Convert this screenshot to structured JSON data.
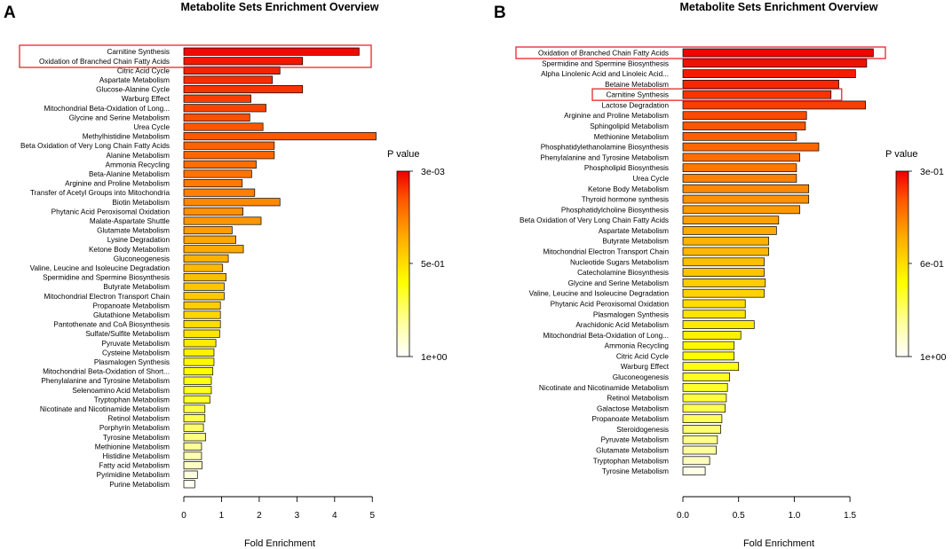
{
  "colors": {
    "scale_high": "#ee0000",
    "scale_mid": "#ff8800",
    "scale_low": "#ffff00",
    "scale_min": "#ffffff",
    "highlight_box": "#e8262c"
  },
  "chart_data": [
    {
      "type": "bar",
      "orientation": "horizontal",
      "panel_letter": "A",
      "title": "Metabolite Sets Enrichment Overview",
      "xlabel": "Fold Enrichment",
      "xlim": [
        0,
        5.1
      ],
      "xticks": [
        0,
        1,
        2,
        3,
        4,
        5
      ],
      "xtick_labels": [
        "0",
        "1",
        "2",
        "3",
        "4",
        "5"
      ],
      "legend": {
        "title": "P value",
        "tick_labels": [
          "3e-03",
          "5e-01",
          "1e+00"
        ]
      },
      "highlighted": [
        "Carnitine Synthesis",
        "Oxidation of Branched Chain Fatty Acids"
      ],
      "bars": [
        {
          "label": "Carnitine Synthesis",
          "value": 4.65,
          "level": 0.98
        },
        {
          "label": "Oxidation of Branched Chain Fatty Acids",
          "value": 3.15,
          "level": 0.96
        },
        {
          "label": "Citric Acid Cycle",
          "value": 2.55,
          "level": 0.94
        },
        {
          "label": "Aspartate Metabolism",
          "value": 2.35,
          "level": 0.92
        },
        {
          "label": "Glucose-Alanine Cycle",
          "value": 3.15,
          "level": 0.91
        },
        {
          "label": "Warburg Effect",
          "value": 1.78,
          "level": 0.89
        },
        {
          "label": "Mitochondrial Beta-Oxidation of Long...",
          "value": 2.18,
          "level": 0.88
        },
        {
          "label": "Glycine and Serine Metabolism",
          "value": 1.75,
          "level": 0.86
        },
        {
          "label": "Urea Cycle",
          "value": 2.1,
          "level": 0.85
        },
        {
          "label": "Methylhistidine Metabolism",
          "value": 5.1,
          "level": 0.84
        },
        {
          "label": "Beta Oxidation of Very Long Chain Fatty Acids",
          "value": 2.4,
          "level": 0.82
        },
        {
          "label": "Alanine Metabolism",
          "value": 2.4,
          "level": 0.81
        },
        {
          "label": "Ammonia Recycling",
          "value": 1.92,
          "level": 0.79
        },
        {
          "label": "Beta-Alanine Metabolism",
          "value": 1.8,
          "level": 0.78
        },
        {
          "label": "Arginine and Proline Metabolism",
          "value": 1.55,
          "level": 0.76
        },
        {
          "label": "Transfer of Acetyl Groups into Mitochondria",
          "value": 1.88,
          "level": 0.75
        },
        {
          "label": "Biotin Metabolism",
          "value": 2.55,
          "level": 0.73
        },
        {
          "label": "Phytanic Acid Peroxisomal Oxidation",
          "value": 1.57,
          "level": 0.71
        },
        {
          "label": "Malate-Aspartate Shuttle",
          "value": 2.05,
          "level": 0.7
        },
        {
          "label": "Glutamate Metabolism",
          "value": 1.28,
          "level": 0.68
        },
        {
          "label": "Lysine Degradation",
          "value": 1.38,
          "level": 0.66
        },
        {
          "label": "Ketone Body Metabolism",
          "value": 1.58,
          "level": 0.65
        },
        {
          "label": "Gluconeogenesis",
          "value": 1.18,
          "level": 0.63
        },
        {
          "label": "Valine, Leucine and Isoleucine Degradation",
          "value": 1.03,
          "level": 0.61
        },
        {
          "label": "Spermidine and Spermine Biosynthesis",
          "value": 1.12,
          "level": 0.59
        },
        {
          "label": "Butyrate Metabolism",
          "value": 1.07,
          "level": 0.57
        },
        {
          "label": "Mitochondrial Electron Transport Chain",
          "value": 1.07,
          "level": 0.56
        },
        {
          "label": "Propanoate Metabolism",
          "value": 0.97,
          "level": 0.54
        },
        {
          "label": "Glutathione Metabolism",
          "value": 0.97,
          "level": 0.52
        },
        {
          "label": "Pantothenate and CoA Biosynthesis",
          "value": 0.97,
          "level": 0.5
        },
        {
          "label": "Sulfate/Sulfite Metabolism",
          "value": 0.95,
          "level": 0.48
        },
        {
          "label": "Pyruvate Metabolism",
          "value": 0.85,
          "level": 0.46
        },
        {
          "label": "Cysteine Metabolism",
          "value": 0.8,
          "level": 0.44
        },
        {
          "label": "Plasmalogen Synthesis",
          "value": 0.8,
          "level": 0.42
        },
        {
          "label": "Mitochondrial Beta-Oxidation of Short...",
          "value": 0.77,
          "level": 0.4
        },
        {
          "label": "Phenylalanine and Tyrosine Metabolism",
          "value": 0.73,
          "level": 0.38
        },
        {
          "label": "Selenoamino Acid Metabolism",
          "value": 0.73,
          "level": 0.36
        },
        {
          "label": "Tryptophan Metabolism",
          "value": 0.69,
          "level": 0.34
        },
        {
          "label": "Nicotinate and Nicotinamide Metabolism",
          "value": 0.56,
          "level": 0.31
        },
        {
          "label": "Retinol Metabolism",
          "value": 0.56,
          "level": 0.29
        },
        {
          "label": "Porphyrin Metabolism",
          "value": 0.52,
          "level": 0.26
        },
        {
          "label": "Tyrosine Metabolism",
          "value": 0.58,
          "level": 0.23
        },
        {
          "label": "Methionine Metabolism",
          "value": 0.47,
          "level": 0.19
        },
        {
          "label": "Histidine Metabolism",
          "value": 0.47,
          "level": 0.15
        },
        {
          "label": "Fatty acid Metabolism",
          "value": 0.48,
          "level": 0.11
        },
        {
          "label": "Pyrimidine Metabolism",
          "value": 0.36,
          "level": 0.06
        },
        {
          "label": "Purine Metabolism",
          "value": 0.29,
          "level": 0.02
        }
      ]
    },
    {
      "type": "bar",
      "orientation": "horizontal",
      "panel_letter": "B",
      "title": "Metabolite Sets Enrichment Overview",
      "xlabel": "Fold Enrichment",
      "xlim": [
        0,
        1.7
      ],
      "xticks": [
        0,
        0.5,
        1,
        1.5
      ],
      "xtick_labels": [
        "0.0",
        "0.5",
        "1.0",
        "1.5"
      ],
      "legend": {
        "title": "P value",
        "tick_labels": [
          "3e-01",
          "6e-01",
          "1e+00"
        ]
      },
      "highlighted": [
        "Oxidation of Branched Chain Fatty Acids",
        "Carnitine Synthesis"
      ],
      "bars": [
        {
          "label": "Oxidation of Branched Chain Fatty Acids",
          "value": 1.71,
          "level": 0.99
        },
        {
          "label": "Spermidine and Spermine Biosynthesis",
          "value": 1.65,
          "level": 0.97
        },
        {
          "label": "Alpha Linolenic Acid and Linoleic Acid...",
          "value": 1.55,
          "level": 0.95
        },
        {
          "label": "Betaine Metabolism",
          "value": 1.4,
          "level": 0.93
        },
        {
          "label": "Carnitine Synthesis",
          "value": 1.33,
          "level": 0.91
        },
        {
          "label": "Lactose Degradation",
          "value": 1.64,
          "level": 0.89
        },
        {
          "label": "Arginine and Proline Metabolism",
          "value": 1.11,
          "level": 0.87
        },
        {
          "label": "Sphingolipid Metabolism",
          "value": 1.1,
          "level": 0.85
        },
        {
          "label": "Methionine Metabolism",
          "value": 1.02,
          "level": 0.83
        },
        {
          "label": "Phosphatidylethanolamine Biosynthesis",
          "value": 1.22,
          "level": 0.81
        },
        {
          "label": "Phenylalanine and Tyrosine Metabolism",
          "value": 1.05,
          "level": 0.79
        },
        {
          "label": "Phospholipid Biosynthesis",
          "value": 1.02,
          "level": 0.77
        },
        {
          "label": "Urea Cycle",
          "value": 1.02,
          "level": 0.75
        },
        {
          "label": "Ketone Body Metabolism",
          "value": 1.13,
          "level": 0.73
        },
        {
          "label": "Thyroid hormone synthesis",
          "value": 1.13,
          "level": 0.71
        },
        {
          "label": "Phosphatidylcholine Biosynthesis",
          "value": 1.05,
          "level": 0.69
        },
        {
          "label": "Beta Oxidation of Very Long Chain Fatty Acids",
          "value": 0.86,
          "level": 0.67
        },
        {
          "label": "Aspartate Metabolism",
          "value": 0.84,
          "level": 0.65
        },
        {
          "label": "Butyrate Metabolism",
          "value": 0.77,
          "level": 0.63
        },
        {
          "label": "Mitochondrial Electron Transport Chain",
          "value": 0.77,
          "level": 0.61
        },
        {
          "label": "Nucleotide Sugars Metabolism",
          "value": 0.73,
          "level": 0.59
        },
        {
          "label": "Catecholamine Biosynthesis",
          "value": 0.73,
          "level": 0.57
        },
        {
          "label": "Glycine and Serine Metabolism",
          "value": 0.74,
          "level": 0.55
        },
        {
          "label": "Valine, Leucine and Isoleucine Degradation",
          "value": 0.73,
          "level": 0.53
        },
        {
          "label": "Phytanic Acid Peroxisomal Oxidation",
          "value": 0.56,
          "level": 0.5
        },
        {
          "label": "Plasmalogen Synthesis",
          "value": 0.56,
          "level": 0.48
        },
        {
          "label": "Arachidonic Acid Metabolism",
          "value": 0.64,
          "level": 0.46
        },
        {
          "label": "Mitochondrial Beta-Oxidation of Long...",
          "value": 0.52,
          "level": 0.44
        },
        {
          "label": "Ammonia Recycling",
          "value": 0.46,
          "level": 0.42
        },
        {
          "label": "Citric Acid Cycle",
          "value": 0.46,
          "level": 0.4
        },
        {
          "label": "Warburg Effect",
          "value": 0.5,
          "level": 0.38
        },
        {
          "label": "Gluconeogenesis",
          "value": 0.42,
          "level": 0.36
        },
        {
          "label": "Nicotinate and Nicotinamide Metabolism",
          "value": 0.4,
          "level": 0.34
        },
        {
          "label": "Retinol Metabolism",
          "value": 0.39,
          "level": 0.32
        },
        {
          "label": "Galactose Metabolism",
          "value": 0.38,
          "level": 0.3
        },
        {
          "label": "Propanoate Metabolism",
          "value": 0.35,
          "level": 0.27
        },
        {
          "label": "Steroidogenesis",
          "value": 0.34,
          "level": 0.24
        },
        {
          "label": "Pyruvate Metabolism",
          "value": 0.31,
          "level": 0.21
        },
        {
          "label": "Glutamate Metabolism",
          "value": 0.3,
          "level": 0.18
        },
        {
          "label": "Tryptophan Metabolism",
          "value": 0.24,
          "level": 0.12
        },
        {
          "label": "Tyrosine Metabolism",
          "value": 0.2,
          "level": 0.04
        }
      ]
    }
  ]
}
